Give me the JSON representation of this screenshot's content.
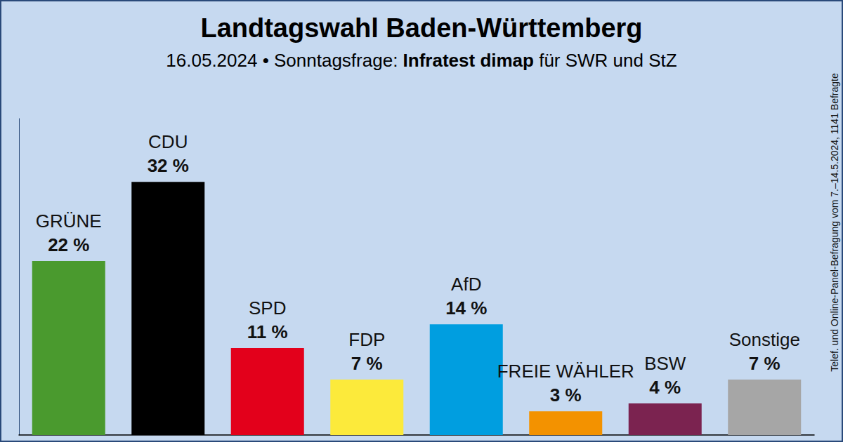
{
  "chart_data": {
    "type": "bar",
    "title": "Landtagswahl Baden-Württemberg",
    "subtitle": "16.05.2024 • Sonntagsfrage: Infratest dimap für SWR und StZ",
    "subtitle_bold": "Infratest dimap",
    "note": "Telef. und Online-Panel-Befragung vom 7.–14.5.2024, 1141 Befragte",
    "categories": [
      "GRÜNE",
      "CDU",
      "SPD",
      "FDP",
      "AfD",
      "FREIE WÄHLER",
      "BSW",
      "Sonstige"
    ],
    "values": [
      22,
      32,
      11,
      7,
      14,
      3,
      4,
      7
    ],
    "value_labels": [
      "22 %",
      "32 %",
      "11 %",
      "7 %",
      "14 %",
      "3 %",
      "4 %",
      "7 %"
    ],
    "colors": [
      "#4a9a2e",
      "#000000",
      "#e3001b",
      "#fcea3b",
      "#009ee0",
      "#f39200",
      "#7b2350",
      "#a6a6a6"
    ],
    "ylim": [
      0,
      40
    ],
    "grid": false,
    "data_labels": true,
    "tick_labels": false
  }
}
